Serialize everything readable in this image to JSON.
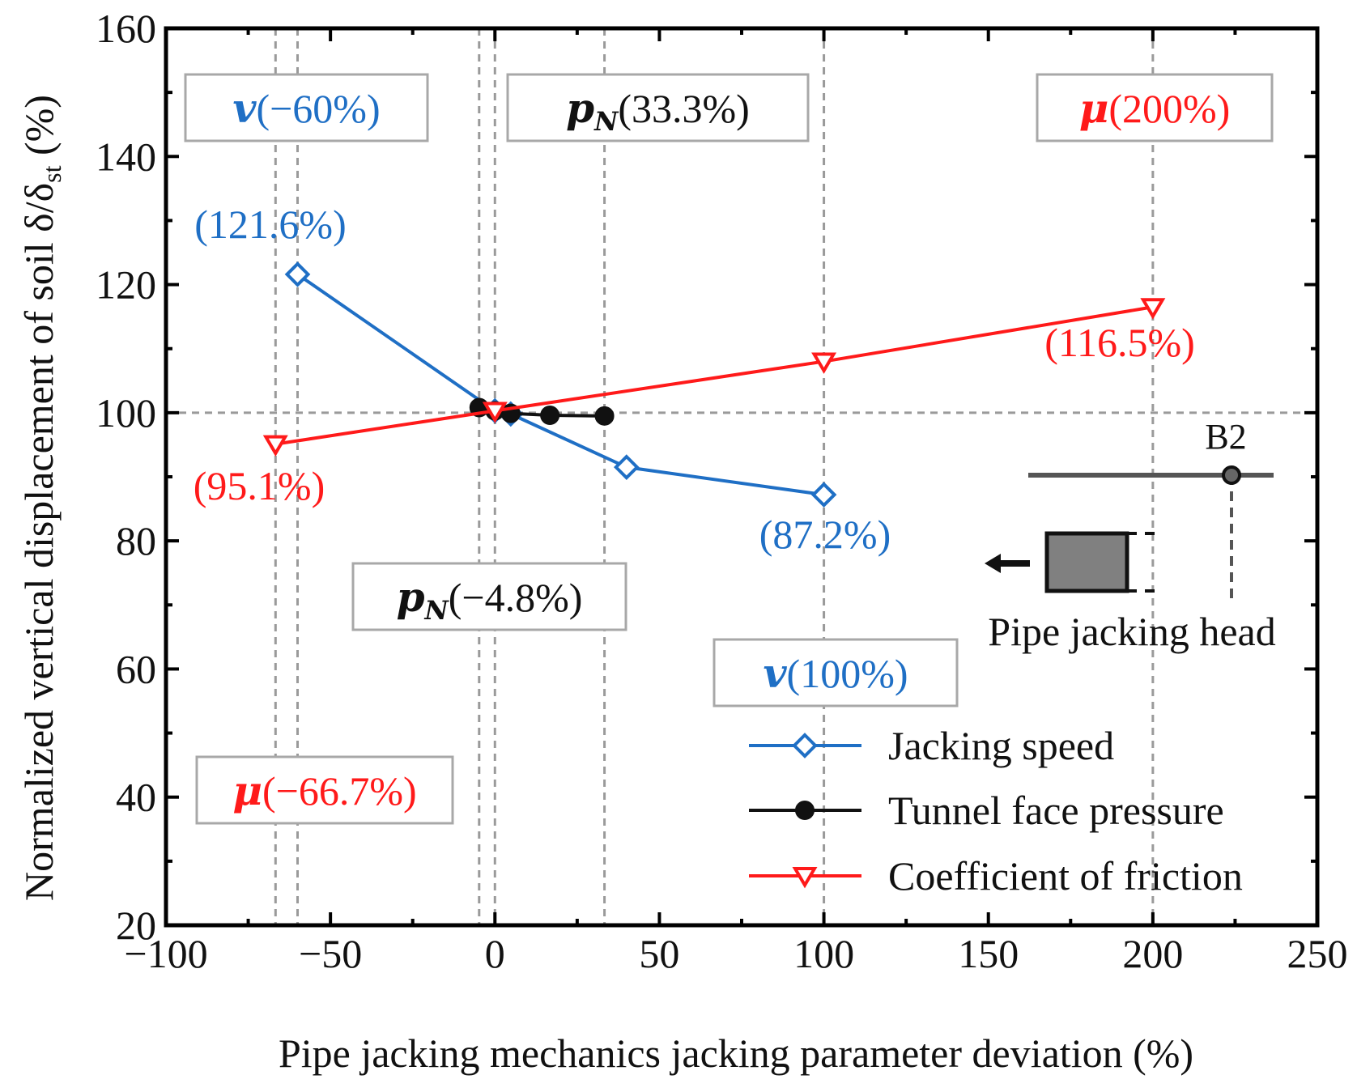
{
  "chart_data": {
    "type": "line",
    "xlabel": "Pipe jacking mechanics jacking parameter deviation (%)",
    "ylabel_main": "Normalized vertical displacement of soil δ/δ",
    "ylabel_sub": "st",
    "ylabel_tail": " (%)",
    "xlim": [
      -100,
      250
    ],
    "ylim": [
      20,
      160
    ],
    "xticks": [
      -100,
      -50,
      0,
      50,
      100,
      150,
      200,
      250
    ],
    "yticks": [
      20,
      40,
      60,
      80,
      100,
      120,
      140,
      160
    ],
    "xtick_labels": [
      "−100",
      "−50",
      "0",
      "50",
      "100",
      "150",
      "200",
      "250"
    ],
    "ytick_labels": [
      "20",
      "40",
      "60",
      "80",
      "100",
      "120",
      "140",
      "160"
    ],
    "legend_position": "bottom-right",
    "colors": {
      "speed": "#1f6fc5",
      "pressure": "#111111",
      "friction": "#ff1a1a",
      "guide": "#9a9a9a",
      "box": "#a8a8a8"
    },
    "series": [
      {
        "name": "Jacking speed",
        "key": "speed",
        "marker": "diamond",
        "x": [
          -60,
          0,
          4.8,
          40,
          100
        ],
        "y": [
          121.6,
          100.3,
          99.8,
          91.5,
          87.2
        ]
      },
      {
        "name": "Tunnel face pressure",
        "key": "pressure",
        "marker": "circle",
        "x": [
          -4.8,
          0,
          4.8,
          16.7,
          33.3
        ],
        "y": [
          100.8,
          100.3,
          99.9,
          99.6,
          99.5
        ]
      },
      {
        "name": "Coefficient of friction",
        "key": "friction",
        "marker": "triangle-down",
        "x": [
          -66.7,
          0,
          100,
          200
        ],
        "y": [
          95.1,
          100.3,
          108.0,
          116.5
        ]
      }
    ],
    "reference_line_y": 100,
    "guide_lines_x": [
      -66.7,
      -60,
      -4.8,
      0,
      33.3,
      100,
      200
    ],
    "value_labels": [
      {
        "text": "(121.6%)",
        "key": "speed"
      },
      {
        "text": "(87.2%)",
        "key": "speed"
      },
      {
        "text": "(116.5%)",
        "key": "friction"
      },
      {
        "text": "(95.1%)",
        "key": "friction"
      }
    ],
    "boxes": [
      {
        "sym": "v",
        "text": "(−60%)",
        "key": "speed"
      },
      {
        "sym": "p",
        "sub": "N",
        "text": "(33.3%)",
        "key": "pressure"
      },
      {
        "sym": "μ",
        "text": "(200%)",
        "key": "friction"
      },
      {
        "sym": "p",
        "sub": "N",
        "text": "(−4.8%)",
        "key": "pressure"
      },
      {
        "sym": "v",
        "text": "(100%)",
        "key": "speed"
      },
      {
        "sym": "μ",
        "text": "(−66.7%)",
        "key": "friction"
      }
    ],
    "inset": {
      "point_label": "B2",
      "caption": "Pipe jacking head"
    }
  }
}
